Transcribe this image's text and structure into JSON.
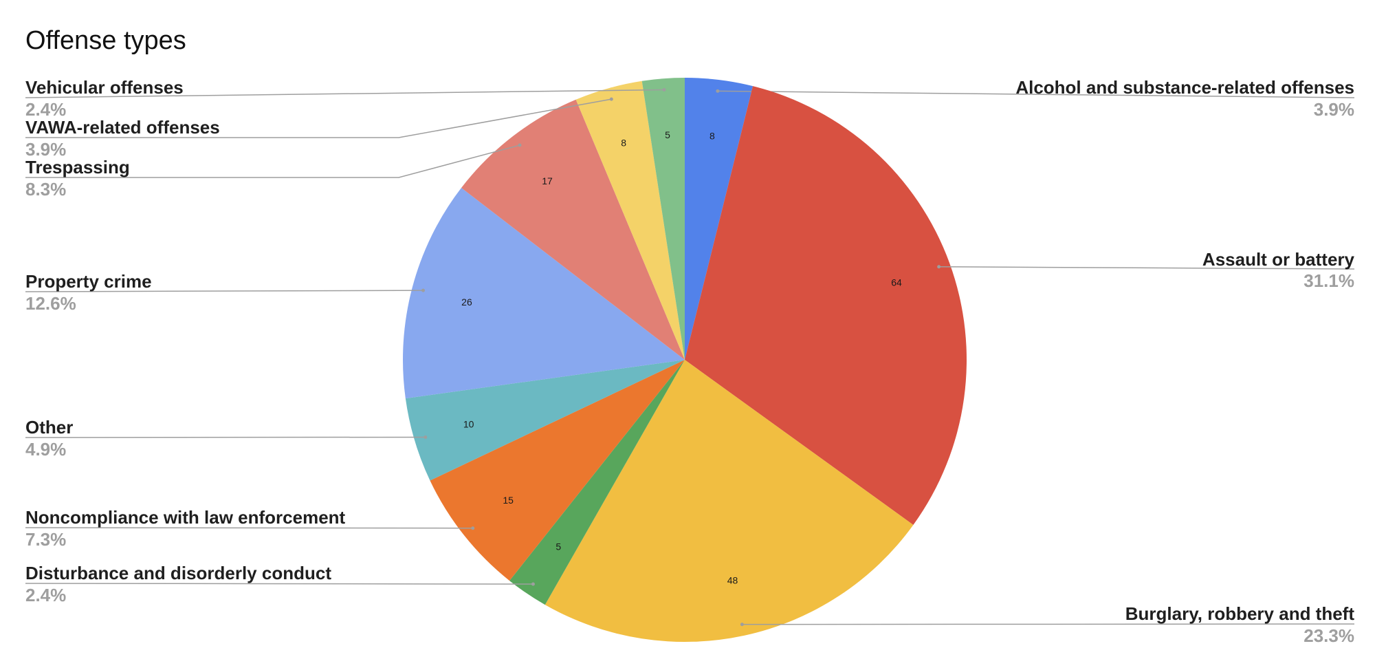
{
  "chart_data": {
    "type": "pie",
    "title": "Offense types",
    "legend_position": "labeled",
    "total": 206,
    "slices": [
      {
        "label": "Alcohol and substance-related offenses",
        "value": 8,
        "percent": "3.9%",
        "color": "#5282EA"
      },
      {
        "label": "Assault or battery",
        "value": 64,
        "percent": "31.1%",
        "color": "#D85141"
      },
      {
        "label": "Burglary, robbery and theft",
        "value": 48,
        "percent": "23.3%",
        "color": "#F1BE41"
      },
      {
        "label": "Disturbance and disorderly conduct",
        "value": 5,
        "percent": "2.4%",
        "color": "#58A65C"
      },
      {
        "label": "Noncompliance with law enforcement",
        "value": 15,
        "percent": "7.3%",
        "color": "#EB772E"
      },
      {
        "label": "Other",
        "value": 10,
        "percent": "4.9%",
        "color": "#6BB9C2"
      },
      {
        "label": "Property crime",
        "value": 26,
        "percent": "12.6%",
        "color": "#88A8EF"
      },
      {
        "label": "Trespassing",
        "value": 17,
        "percent": "8.3%",
        "color": "#E18075"
      },
      {
        "label": "VAWA-related offenses",
        "value": 8,
        "percent": "3.9%",
        "color": "#F4D268"
      },
      {
        "label": "Vehicular offenses",
        "value": 5,
        "percent": "2.4%",
        "color": "#81C08A"
      }
    ]
  }
}
